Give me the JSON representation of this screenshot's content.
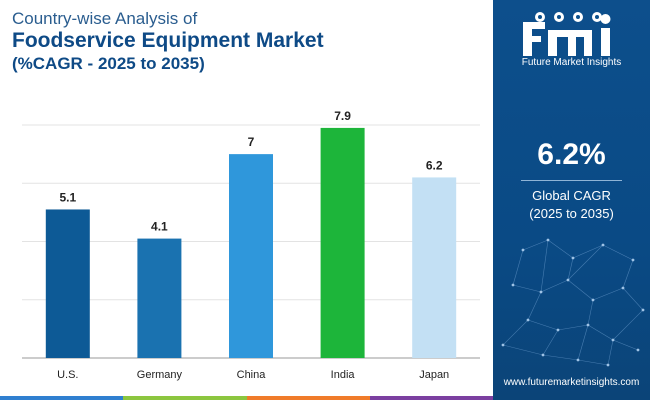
{
  "title": {
    "line1": "Country-wise Analysis of",
    "line2": "Foodservice Equipment Market",
    "line3": "(%CAGR - 2025 to 2035)"
  },
  "chart_data": {
    "type": "bar",
    "categories": [
      "U.S.",
      "Germany",
      "China",
      "India",
      "Japan"
    ],
    "values": [
      5.1,
      4.1,
      7,
      7.9,
      6.2
    ],
    "value_labels": [
      "5.1",
      "4.1",
      "7",
      "7.9",
      "6.2"
    ],
    "bar_colors": [
      "#0d5a96",
      "#1a72b0",
      "#2f97db",
      "#1db53a",
      "#c3e0f4"
    ],
    "ylim": [
      0,
      8
    ],
    "grid": true,
    "xlabel": "",
    "ylabel": ""
  },
  "panel": {
    "brand": "Future Market Insights",
    "cagr_value": "6.2%",
    "cagr_label_line1": "Global CAGR",
    "cagr_label_line2": "(2025 to 2035)",
    "website": "www.futuremarketinsights.com"
  },
  "colors": {
    "title": "#0e4a86",
    "panel_bg": "#0b4f8c",
    "footer_stripe": [
      "#2f7fd0",
      "#8cc63f",
      "#f07b2a",
      "#7b3fa0"
    ]
  }
}
